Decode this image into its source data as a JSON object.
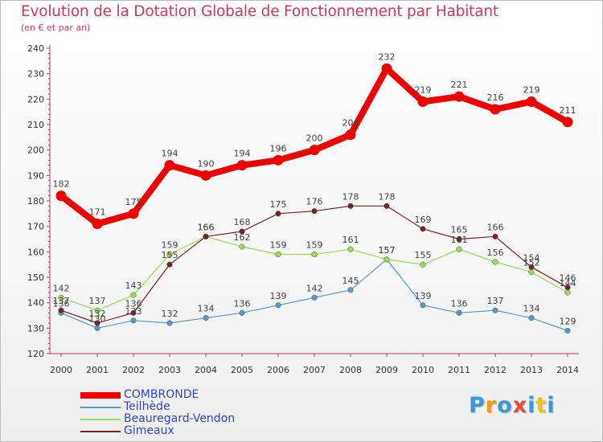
{
  "header": {
    "title": "Evolution de la Dotation Globale de Fonctionnement par Habitant",
    "subtitle": "(en € et par an)"
  },
  "chart_data": {
    "type": "line",
    "categories": [
      "2000",
      "2001",
      "2002",
      "2003",
      "2004",
      "2005",
      "2006",
      "2007",
      "2008",
      "2009",
      "2010",
      "2011",
      "2012",
      "2013",
      "2014"
    ],
    "ylim": [
      120,
      240
    ],
    "yticks": [
      120,
      130,
      140,
      150,
      160,
      170,
      180,
      190,
      200,
      210,
      220,
      230,
      240
    ],
    "grid": false,
    "legend_position": "bottom-left",
    "series": [
      {
        "name": "COMBRONDE",
        "color": "#ee0000",
        "values": [
          182,
          171,
          175,
          194,
          190,
          194,
          196,
          200,
          206,
          232,
          219,
          221,
          216,
          219,
          211
        ]
      },
      {
        "name": "Teilhède",
        "color": "#5599cc",
        "values": [
          136,
          130,
          133,
          132,
          134,
          136,
          139,
          142,
          145,
          157,
          139,
          136,
          137,
          134,
          129
        ]
      },
      {
        "name": "Beauregard-Vendon",
        "color": "#99dd55",
        "values": [
          142,
          137,
          143,
          159,
          166,
          162,
          159,
          159,
          161,
          157,
          155,
          161,
          156,
          152,
          144
        ]
      },
      {
        "name": "Gimeaux",
        "color": "#772222",
        "values": [
          137,
          132,
          136,
          155,
          166,
          168,
          175,
          176,
          178,
          178,
          169,
          165,
          166,
          154,
          146
        ]
      }
    ]
  },
  "logo": {
    "letters": [
      "P",
      "r",
      "o",
      "x",
      "i",
      "t",
      "i"
    ],
    "colors": [
      "#3a9ad9",
      "#f39c12",
      "#3a9ad9",
      "#e74c3c",
      "#3a9ad9",
      "#f1c40f",
      "#3a9ad9"
    ]
  }
}
